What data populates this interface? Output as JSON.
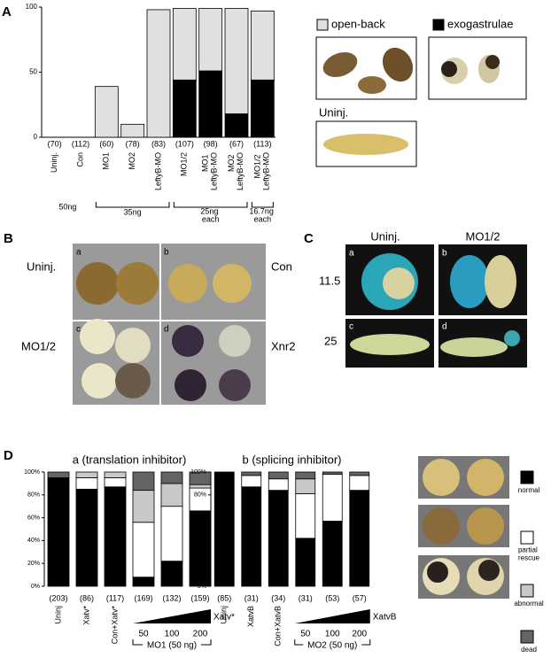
{
  "chart_data": [
    {
      "type": "stacked_bar",
      "categories": [
        "Uninj.",
        "Con",
        "MO1",
        "MO2",
        "LeftyB-MO",
        "MO1/2",
        "MO1 LeftyB-MO",
        "MO2 LeftyB-MO",
        "MO1/2 LeftyB-MO"
      ],
      "sample_sizes": [
        "(70)",
        "(112)",
        "(60)",
        "(78)",
        "(83)",
        "(107)",
        "(98)",
        "(67)",
        "(113)"
      ],
      "series": [
        {
          "name": "exogastrulae",
          "color": "#000000",
          "values": [
            0,
            0,
            0,
            0,
            0,
            44,
            51,
            18,
            44
          ]
        },
        {
          "name": "open-back",
          "color": "#e0e0e0",
          "values": [
            0,
            0,
            39,
            10,
            98,
            55,
            48,
            81,
            53
          ]
        }
      ],
      "ylim": [
        0,
        100
      ],
      "yticks": [
        0,
        50,
        100
      ],
      "annotations": [
        "50ng",
        "35ng",
        "25ng each",
        "16.7ng each"
      ]
    },
    {
      "type": "stacked_bar",
      "title": "a (translation inhibitor)",
      "categories": [
        "Uninj",
        "Xatv*",
        "Con+Xatv*",
        "50",
        "100",
        "200"
      ],
      "sample_sizes": [
        "(203)",
        "(86)",
        "(117)",
        "(169)",
        "(132)",
        "(159)"
      ],
      "group_label": "MO1 (50 ng)",
      "gradient_label": "Xatv*",
      "series": [
        {
          "name": "normal",
          "color": "#000000",
          "values": [
            95,
            85,
            87,
            8,
            22,
            66
          ]
        },
        {
          "name": "partial rescue",
          "color": "#ffffff",
          "values": [
            0,
            10,
            8,
            48,
            48,
            20
          ]
        },
        {
          "name": "abnormal",
          "color": "#c8c8c8",
          "values": [
            0,
            5,
            5,
            28,
            20,
            3
          ]
        },
        {
          "name": "dead",
          "color": "#646464",
          "values": [
            5,
            0,
            0,
            16,
            10,
            11
          ]
        }
      ],
      "ylim": [
        0,
        100
      ],
      "yticks": [
        {
          "value": 0,
          "label": "0%"
        },
        {
          "value": 20,
          "label": "20%"
        },
        {
          "value": 40,
          "label": "40%"
        },
        {
          "value": 60,
          "label": "60%"
        },
        {
          "value": 80,
          "label": "80%"
        },
        {
          "value": 100,
          "label": "100%"
        }
      ]
    },
    {
      "type": "stacked_bar",
      "title": "b (splicing inhibitor)",
      "categories": [
        "Uninj",
        "XatvB",
        "Con+XatvB",
        "50",
        "100",
        "200"
      ],
      "sample_sizes": [
        "(85)",
        "(31)",
        "(34)",
        "(31)",
        "(53)",
        "(57)"
      ],
      "group_label": "MO2 (50 ng)",
      "gradient_label": "XatvB",
      "series": [
        {
          "color": "#000000",
          "values": [
            100,
            87,
            84,
            42,
            57,
            84
          ]
        },
        {
          "color": "#ffffff",
          "values": [
            0,
            10,
            10,
            39,
            41,
            13
          ]
        },
        {
          "color": "#c8c8c8",
          "values": [
            0,
            0,
            0,
            13,
            0,
            0
          ]
        },
        {
          "color": "#646464",
          "values": [
            0,
            3,
            6,
            6,
            2,
            3
          ]
        }
      ],
      "ylim": [
        0,
        100
      ],
      "yticks": [
        {
          "value": 0,
          "label": "0%"
        },
        {
          "value": 20,
          "label": "20%"
        },
        {
          "value": 40,
          "label": "40%"
        },
        {
          "value": 60,
          "label": "60%"
        },
        {
          "value": 80,
          "label": "80%"
        },
        {
          "value": 100,
          "label": "100%"
        }
      ]
    }
  ],
  "panel_labels": [
    "A",
    "B",
    "C",
    "D"
  ],
  "panel_a_photo_label": "Uninj.",
  "panel_b": {
    "subpanels": [
      "a",
      "b",
      "c",
      "d"
    ],
    "labels": [
      "Uninj.",
      "Con",
      "MO1/2",
      "Xnr2"
    ]
  },
  "panel_c": {
    "columns": [
      "Uninj.",
      "MO1/2"
    ],
    "stages": [
      "11.5",
      "25"
    ],
    "subpanels": [
      "a",
      "b",
      "c",
      "d"
    ]
  }
}
